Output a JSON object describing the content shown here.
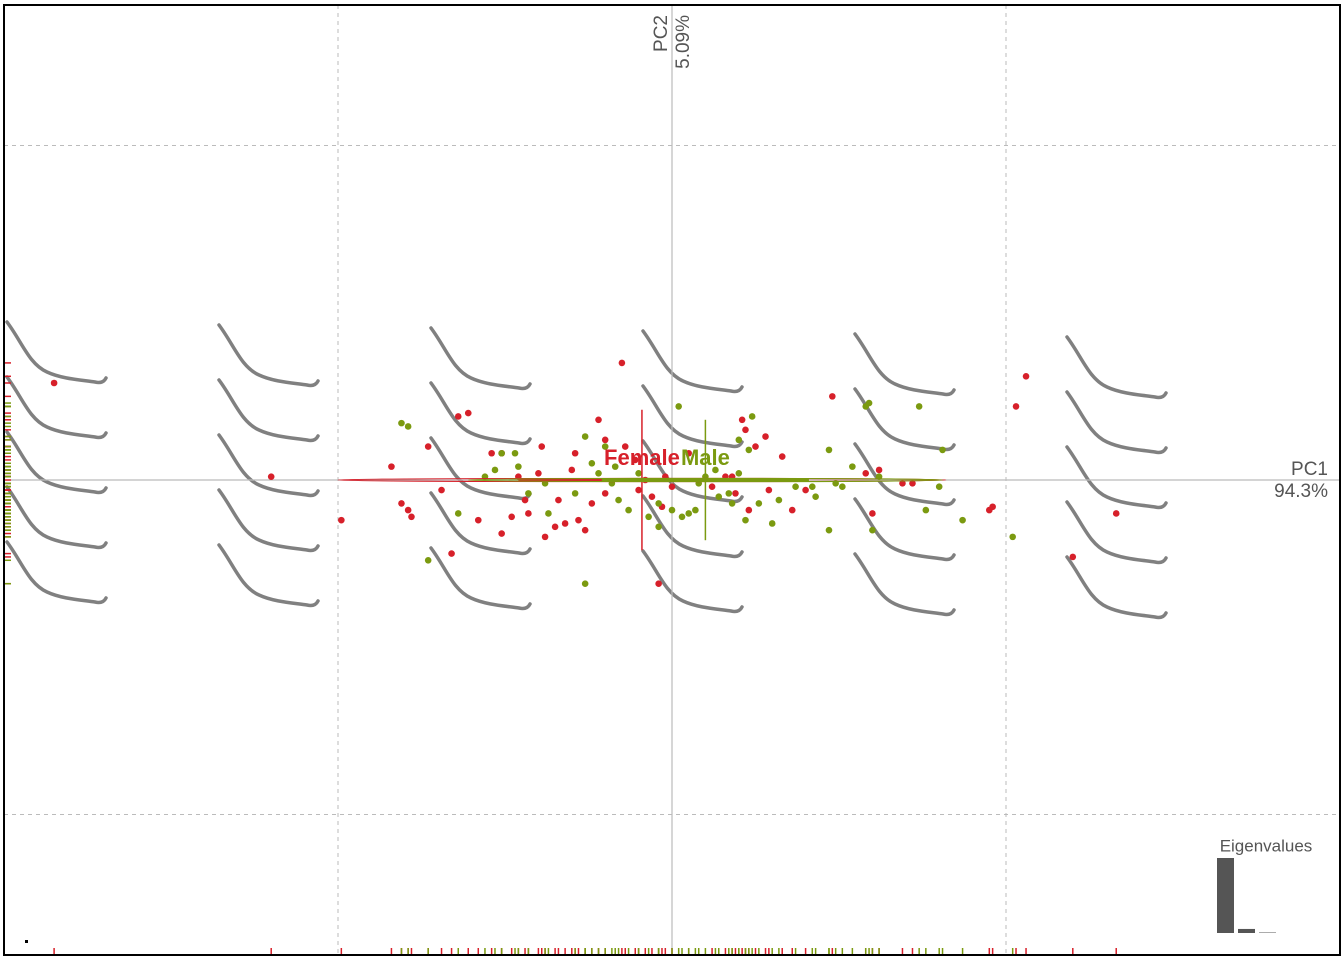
{
  "chart_data": {
    "type": "scatter",
    "xlim": [
      -2,
      2
    ],
    "ylim": [
      -1.42,
      1.42
    ],
    "xticks": [
      -1,
      0,
      1
    ],
    "yticks": [
      -1,
      0,
      1
    ],
    "grid": true,
    "x_axis_label": [
      "PC1",
      "94.3%"
    ],
    "y_axis_label": [
      "PC2",
      "5.09%"
    ],
    "series": [
      {
        "name": "Female",
        "color": "#d7202a",
        "center": [
          -0.09,
          0
        ],
        "cross": [
          0.37,
          0.21
        ],
        "ellipse": [
          0.91,
          0.005
        ],
        "x": [
          -1.85,
          -1.2,
          -0.99,
          -0.84,
          -0.81,
          -0.79,
          -0.78,
          -0.73,
          -0.69,
          -0.66,
          -0.64,
          -0.61,
          -0.58,
          -0.54,
          -0.51,
          -0.51,
          -0.48,
          -0.46,
          -0.44,
          -0.43,
          -0.4,
          -0.39,
          -0.38,
          -0.35,
          -0.34,
          -0.32,
          -0.3,
          -0.29,
          -0.28,
          -0.26,
          -0.24,
          -0.22,
          -0.2,
          -0.2,
          -0.15,
          -0.14,
          -0.11,
          -0.1,
          -0.08,
          -0.06,
          -0.04,
          -0.03,
          -0.02,
          0.0,
          0.05,
          0.12,
          0.16,
          0.18,
          0.19,
          0.21,
          0.22,
          0.23,
          0.25,
          0.28,
          0.29,
          0.33,
          0.36,
          0.4,
          0.48,
          0.58,
          0.6,
          0.62,
          0.69,
          0.72,
          0.95,
          0.96,
          1.03,
          1.06,
          1.2,
          1.33
        ],
        "values": [
          0.29,
          0.01,
          -0.12,
          0.04,
          -0.07,
          -0.09,
          -0.11,
          0.1,
          -0.03,
          -0.22,
          0.19,
          0.2,
          -0.12,
          0.08,
          0.08,
          -0.16,
          -0.11,
          0.01,
          -0.06,
          -0.1,
          0.02,
          0.1,
          -0.17,
          -0.14,
          -0.06,
          -0.13,
          0.03,
          0.08,
          -0.12,
          -0.15,
          -0.07,
          0.18,
          -0.04,
          0.12,
          0.35,
          0.1,
          0.06,
          -0.03,
          0.0,
          -0.05,
          -0.31,
          -0.08,
          0.01,
          -0.02,
          0.08,
          -0.02,
          0.01,
          0.01,
          -0.04,
          0.18,
          0.15,
          -0.09,
          0.1,
          0.13,
          -0.03,
          0.07,
          -0.09,
          -0.03,
          0.25,
          0.02,
          -0.1,
          0.03,
          -0.01,
          -0.01,
          -0.09,
          -0.08,
          0.22,
          0.31,
          -0.23,
          -0.1
        ]
      },
      {
        "name": "Male",
        "color": "#7b9a10",
        "center": [
          0.1,
          0
        ],
        "cross": [
          0.31,
          0.18
        ],
        "ellipse": [
          0.71,
          0.005
        ],
        "x": [
          -0.81,
          -0.79,
          -0.73,
          -0.64,
          -0.56,
          -0.53,
          -0.51,
          -0.47,
          -0.46,
          -0.43,
          -0.38,
          -0.37,
          -0.29,
          -0.26,
          -0.26,
          -0.24,
          -0.22,
          -0.2,
          -0.18,
          -0.17,
          -0.16,
          -0.13,
          -0.1,
          -0.07,
          -0.04,
          -0.04,
          0.0,
          0.02,
          0.03,
          0.05,
          0.07,
          0.08,
          0.1,
          0.13,
          0.14,
          0.17,
          0.18,
          0.2,
          0.2,
          0.22,
          0.23,
          0.24,
          0.26,
          0.3,
          0.32,
          0.37,
          0.42,
          0.43,
          0.47,
          0.47,
          0.49,
          0.51,
          0.54,
          0.58,
          0.59,
          0.6,
          0.62,
          0.74,
          0.76,
          0.8,
          0.81,
          0.87,
          1.02
        ],
        "values": [
          0.17,
          0.16,
          -0.24,
          -0.1,
          0.01,
          0.03,
          0.08,
          0.08,
          0.04,
          -0.04,
          -0.01,
          -0.1,
          -0.04,
          -0.31,
          0.13,
          0.05,
          0.02,
          0.1,
          -0.01,
          0.04,
          -0.06,
          -0.09,
          0.02,
          -0.11,
          -0.14,
          -0.07,
          -0.09,
          0.22,
          -0.11,
          -0.1,
          -0.09,
          -0.01,
          0.01,
          0.03,
          -0.05,
          -0.04,
          -0.07,
          0.12,
          0.02,
          -0.12,
          0.09,
          0.19,
          -0.07,
          -0.13,
          -0.06,
          -0.02,
          -0.02,
          -0.05,
          -0.15,
          0.09,
          -0.01,
          -0.02,
          0.04,
          0.22,
          0.23,
          -0.15,
          0.01,
          0.22,
          -0.09,
          -0.02,
          0.09,
          -0.12,
          -0.17
        ]
      }
    ],
    "eigenvalues": {
      "title": "Eigenvalues",
      "values": [
        94.3,
        5.09,
        0.61
      ],
      "color": "#555555"
    }
  }
}
